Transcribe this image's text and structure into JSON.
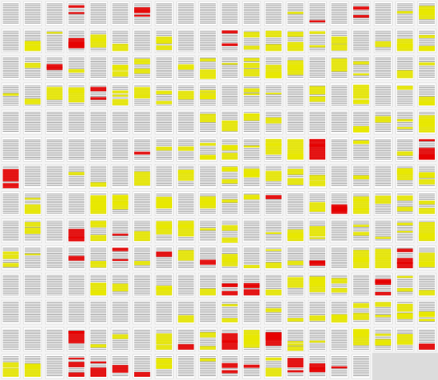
{
  "thumbnails": {
    "columns": 20,
    "colors": {
      "yellow": "#e8e800",
      "red": "#e60000",
      "none": "#ffffff"
    },
    "highlights": [
      "none",
      "none",
      "none",
      "red",
      "none",
      "none",
      "red",
      "none",
      "none",
      "none",
      "none",
      "none",
      "none",
      "yellow",
      "red",
      "none",
      "red",
      "none",
      "yellow",
      "yellow",
      "none",
      "yellow",
      "yellow",
      "red",
      "yellow",
      "yellow",
      "none",
      "yellow",
      "none",
      "none",
      "red",
      "yellow",
      "yellow",
      "yellow",
      "yellow",
      "yellow",
      "none",
      "yellow",
      "yellow",
      "yellow",
      "none",
      "yellow",
      "red",
      "yellow",
      "none",
      "yellow",
      "yellow",
      "none",
      "yellow",
      "yellow",
      "yellow",
      "yellow",
      "yellow",
      "yellow",
      "none",
      "yellow",
      "yellow",
      "none",
      "yellow",
      "yellow",
      "yellow",
      "yellow",
      "yellow",
      "yellow",
      "red",
      "yellow",
      "yellow",
      "yellow",
      "yellow",
      "yellow",
      "none",
      "yellow",
      "yellow",
      "none",
      "yellow",
      "none",
      "yellow",
      "none",
      "yellow",
      "yellow",
      "none",
      "none",
      "none",
      "none",
      "none",
      "none",
      "none",
      "none",
      "none",
      "yellow",
      "yellow",
      "yellow",
      "yellow",
      "none",
      "none",
      "none",
      "yellow",
      "yellow",
      "yellow",
      "yellow",
      "none",
      "none",
      "none",
      "none",
      "none",
      "none",
      "red",
      "yellow",
      "yellow",
      "yellow",
      "yellow",
      "yellow",
      "yellow",
      "yellow",
      "red",
      "none",
      "yellow",
      "none",
      "yellow",
      "red",
      "red",
      "none",
      "none",
      "yellow",
      "yellow",
      "none",
      "yellow",
      "none",
      "yellow",
      "none",
      "yellow",
      "yellow",
      "yellow",
      "yellow",
      "yellow",
      "none",
      "yellow",
      "none",
      "yellow",
      "yellow",
      "none",
      "yellow",
      "none",
      "none",
      "yellow",
      "yellow",
      "none",
      "yellow",
      "none",
      "yellow",
      "yellow",
      "yellow",
      "red",
      "none",
      "yellow",
      "red",
      "yellow",
      "yellow",
      "yellow",
      "yellow",
      "none",
      "yellow",
      "none",
      "red",
      "yellow",
      "red",
      "yellow",
      "yellow",
      "yellow",
      "yellow",
      "yellow",
      "none",
      "yellow",
      "yellow",
      "yellow",
      "none",
      "yellow",
      "yellow",
      "yellow",
      "yellow",
      "yellow",
      "yellow",
      "none",
      "red",
      "yellow",
      "red",
      "yellow",
      "red",
      "yellow",
      "red",
      "yellow",
      "yellow",
      "yellow",
      "yellow",
      "red",
      "none",
      "yellow",
      "yellow",
      "red",
      "yellow",
      "none",
      "none",
      "none",
      "none",
      "yellow",
      "yellow",
      "none",
      "yellow",
      "none",
      "yellow",
      "red",
      "red",
      "yellow",
      "yellow",
      "yellow",
      "yellow",
      "none",
      "red",
      "yellow",
      "yellow",
      "none",
      "none",
      "none",
      "none",
      "none",
      "none",
      "none",
      "none",
      "yellow",
      "none",
      "yellow",
      "none",
      "yellow",
      "yellow",
      "yellow",
      "yellow",
      "yellow",
      "yellow",
      "yellow",
      "yellow",
      "none",
      "none",
      "none",
      "red",
      "yellow",
      "yellow",
      "none",
      "yellow",
      "red",
      "yellow",
      "red",
      "yellow",
      "red",
      "yellow",
      "yellow",
      "none",
      "yellow",
      "yellow",
      "yellow",
      "red",
      "yellow",
      "yellow",
      "none",
      "red",
      "red",
      "red",
      "red",
      "yellow",
      "none",
      "yellow",
      "red",
      "red",
      "yellow",
      "red",
      "red",
      "red",
      "none"
    ]
  }
}
